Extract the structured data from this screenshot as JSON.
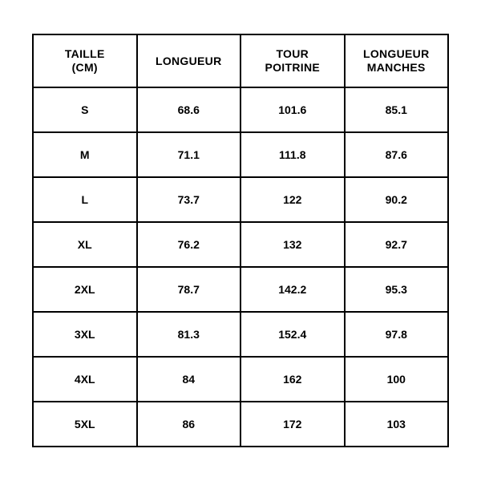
{
  "size_table": {
    "type": "table",
    "background_color": "#ffffff",
    "border_color": "#000000",
    "border_width": 2,
    "text_color": "#000000",
    "font_weight": 700,
    "header_fontsize": 14,
    "cell_fontsize": 14,
    "columns": [
      {
        "label": "TAILLE\n(CM)",
        "key": "taille"
      },
      {
        "label": "LONGUEUR",
        "key": "longueur"
      },
      {
        "label": "TOUR\nPOITRINE",
        "key": "tour_poitrine"
      },
      {
        "label": "LONGUEUR\nMANCHES",
        "key": "longueur_manches"
      }
    ],
    "rows": [
      {
        "taille": "S",
        "longueur": "68.6",
        "tour_poitrine": "101.6",
        "longueur_manches": "85.1"
      },
      {
        "taille": "M",
        "longueur": "71.1",
        "tour_poitrine": "111.8",
        "longueur_manches": "87.6"
      },
      {
        "taille": "L",
        "longueur": "73.7",
        "tour_poitrine": "122",
        "longueur_manches": "90.2"
      },
      {
        "taille": "XL",
        "longueur": "76.2",
        "tour_poitrine": "132",
        "longueur_manches": "92.7"
      },
      {
        "taille": "2XL",
        "longueur": "78.7",
        "tour_poitrine": "142.2",
        "longueur_manches": "95.3"
      },
      {
        "taille": "3XL",
        "longueur": "81.3",
        "tour_poitrine": "152.4",
        "longueur_manches": "97.8"
      },
      {
        "taille": "4XL",
        "longueur": "84",
        "tour_poitrine": "162",
        "longueur_manches": "100"
      },
      {
        "taille": "5XL",
        "longueur": "86",
        "tour_poitrine": "172",
        "longueur_manches": "103"
      }
    ]
  }
}
